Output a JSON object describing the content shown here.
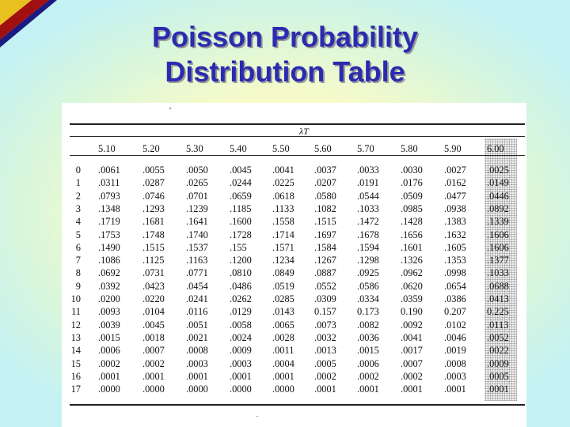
{
  "title_lines": [
    "Poisson Probability",
    "Distribution Table"
  ],
  "table": {
    "tick_mark": "'",
    "bottom_mark": ".",
    "lambda_label": "λT",
    "columns": [
      "5.10",
      "5.20",
      "5.30",
      "5.40",
      "5.50",
      "5.60",
      "5.70",
      "5.80",
      "5.90",
      "6.00"
    ],
    "rows": [
      {
        "x": "0",
        "values": [
          ".0061",
          ".0055",
          ".0050",
          ".0045",
          ".0041",
          ".0037",
          ".0033",
          ".0030",
          ".0027",
          ".0025"
        ]
      },
      {
        "x": "1",
        "values": [
          ".0311",
          ".0287",
          ".0265",
          ".0244",
          ".0225",
          ".0207",
          ".0191",
          ".0176",
          ".0162",
          ".0149"
        ]
      },
      {
        "x": "2",
        "values": [
          ".0793",
          ".0746",
          ".0701",
          ".0659",
          ".0618",
          ".0580",
          ".0544",
          ".0509",
          ".0477",
          ".0446"
        ]
      },
      {
        "x": "3",
        "values": [
          ".1348",
          ".1293",
          ".1239",
          ".1185",
          ".1133",
          ".1082",
          ".1033",
          ".0985",
          ".0938",
          ".0892"
        ]
      },
      {
        "x": "4",
        "values": [
          ".1719",
          ".1681",
          ".1641",
          ".1600",
          ".1558",
          ".1515",
          ".1472",
          ".1428",
          ".1383",
          ".1339"
        ]
      },
      {
        "x": "5",
        "values": [
          ".1753",
          ".1748",
          ".1740",
          ".1728",
          ".1714",
          ".1697",
          ".1678",
          ".1656",
          ".1632",
          ".1606"
        ]
      },
      {
        "x": "6",
        "values": [
          ".1490",
          ".1515",
          ".1537",
          ".155",
          ".1571",
          ".1584",
          ".1594",
          ".1601",
          ".1605",
          ".1606"
        ]
      },
      {
        "x": "7",
        "values": [
          ".1086",
          ".1125",
          ".1163",
          ".1200",
          ".1234",
          ".1267",
          ".1298",
          ".1326",
          ".1353",
          ".1377"
        ]
      },
      {
        "x": "8",
        "values": [
          ".0692",
          ".0731",
          ".0771",
          ".0810",
          ".0849",
          ".0887",
          ".0925",
          ".0962",
          ".0998",
          ".1033"
        ]
      },
      {
        "x": "9",
        "values": [
          ".0392",
          ".0423",
          ".0454",
          ".0486",
          ".0519",
          ".0552",
          ".0586",
          ".0620",
          ".0654",
          ".0688"
        ]
      },
      {
        "x": "10",
        "values": [
          ".0200",
          ".0220",
          ".0241",
          ".0262",
          ".0285",
          ".0309",
          ".0334",
          ".0359",
          ".0386",
          ".0413"
        ]
      },
      {
        "x": "11",
        "values": [
          ".0093",
          ".0104",
          ".0116",
          ".0129",
          ".0143",
          "0.157",
          "0.173",
          "0.190",
          "0.207",
          "0.225"
        ]
      },
      {
        "x": "12",
        "values": [
          ".0039",
          ".0045",
          ".0051",
          ".0058",
          ".0065",
          ".0073",
          ".0082",
          ".0092",
          ".0102",
          ".0113"
        ]
      },
      {
        "x": "13",
        "values": [
          ".0015",
          ".0018",
          ".0021",
          ".0024",
          ".0028",
          ".0032",
          ".0036",
          ".0041",
          ".0046",
          ".0052"
        ]
      },
      {
        "x": "14",
        "values": [
          ".0006",
          ".0007",
          ".0008",
          ".0009",
          ".0011",
          ".0013",
          ".0015",
          ".0017",
          ".0019",
          ".0022"
        ]
      },
      {
        "x": "15",
        "values": [
          ".0002",
          ".0002",
          ".0003",
          ".0003",
          ".0004",
          ".0005",
          ".0006",
          ".0007",
          ".0008",
          ".0009"
        ]
      },
      {
        "x": "16",
        "values": [
          ".0001",
          ".0001",
          ".0001",
          ".0001",
          ".0001",
          ".0002",
          ".0002",
          ".0002",
          ".0003",
          ".0005"
        ]
      },
      {
        "x": "17",
        "values": [
          ".0000",
          ".0000",
          ".0000",
          ".0000",
          ".0000",
          ".0001",
          ".0001",
          ".0001",
          ".0001",
          ".0001"
        ]
      }
    ]
  },
  "colors": {
    "title": "#2b2bb0",
    "title_shadow": "#9a9a9a",
    "corner_gold": "#e8c020",
    "corner_red": "#a01010",
    "corner_navy": "#1a1a80",
    "table_background": "#ffffff"
  }
}
